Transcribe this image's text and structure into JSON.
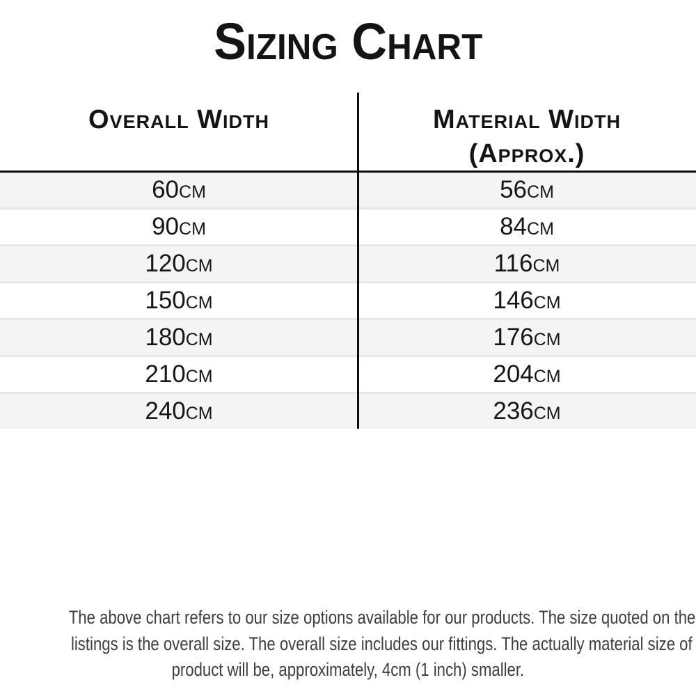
{
  "title": "Sizing Chart",
  "table": {
    "headers": [
      {
        "line1": "Overall Width",
        "line2": ""
      },
      {
        "line1": "Material Width",
        "line2": "(Approx.)"
      }
    ],
    "rows": [
      {
        "overall": "60cm",
        "material": "56cm"
      },
      {
        "overall": "90cm",
        "material": "84cm"
      },
      {
        "overall": "120cm",
        "material": "116cm"
      },
      {
        "overall": "150cm",
        "material": "146cm"
      },
      {
        "overall": "180cm",
        "material": "176cm"
      },
      {
        "overall": "210cm",
        "material": "204cm"
      },
      {
        "overall": "240cm",
        "material": "236cm"
      }
    ]
  },
  "footer": {
    "lines": [
      "The above chart refers to our size options available for our products. The size quoted on the",
      "listings is the overall size. The overall size includes our fittings. The actually material size of the",
      "product will be, approximately, 4cm (1 inch) smaller."
    ]
  },
  "colors": {
    "text": "#141414",
    "rule": "#0c0c0c",
    "row_stripe": "#f4f4f4",
    "row_separator": "#e8e8e8",
    "footer_text": "#3e3e3e",
    "background": "#ffffff"
  }
}
